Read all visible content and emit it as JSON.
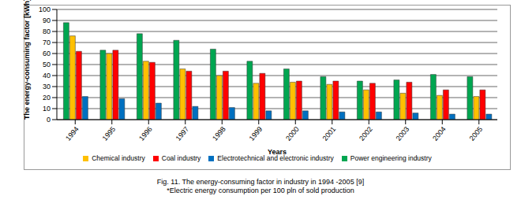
{
  "chart_data": {
    "type": "bar",
    "title": "Fig. 11. The energy-consuming factor in industry in 1994 -2005 [9]",
    "subtitle": "*Electric energy consumption per 100 pln of sold production",
    "x_label": "Years",
    "y_label": "The energy-consuming factor [kWh]",
    "categories": [
      "1994",
      "1995",
      "1996",
      "1997",
      "1998",
      "1999",
      "2000",
      "2001",
      "2002",
      "2003",
      "2004",
      "2005"
    ],
    "series": [
      {
        "name": "Power engineering industry",
        "color": "#00a651",
        "values": [
          88,
          63,
          78,
          72,
          64,
          53,
          46,
          39,
          35,
          36,
          41,
          39
        ]
      },
      {
        "name": "Chemical industry",
        "color": "#ffc000",
        "values": [
          76,
          60,
          53,
          46,
          40,
          33,
          34,
          32,
          27,
          24,
          22,
          21
        ]
      },
      {
        "name": "Coal industry",
        "color": "#ff0000",
        "values": [
          62,
          63,
          52,
          44,
          44,
          42,
          35,
          35,
          33,
          34,
          27,
          27
        ]
      },
      {
        "name": "Electrotechnical and electronic industry",
        "color": "#0070c0",
        "values": [
          21,
          19,
          15,
          12,
          11,
          8,
          8,
          7,
          7,
          6,
          5,
          5
        ]
      }
    ],
    "ylim": [
      0,
      100
    ],
    "yticks": [
      0,
      10,
      20,
      30,
      40,
      50,
      60,
      70,
      80,
      90,
      100
    ],
    "grid": true,
    "legend": "bottom"
  }
}
